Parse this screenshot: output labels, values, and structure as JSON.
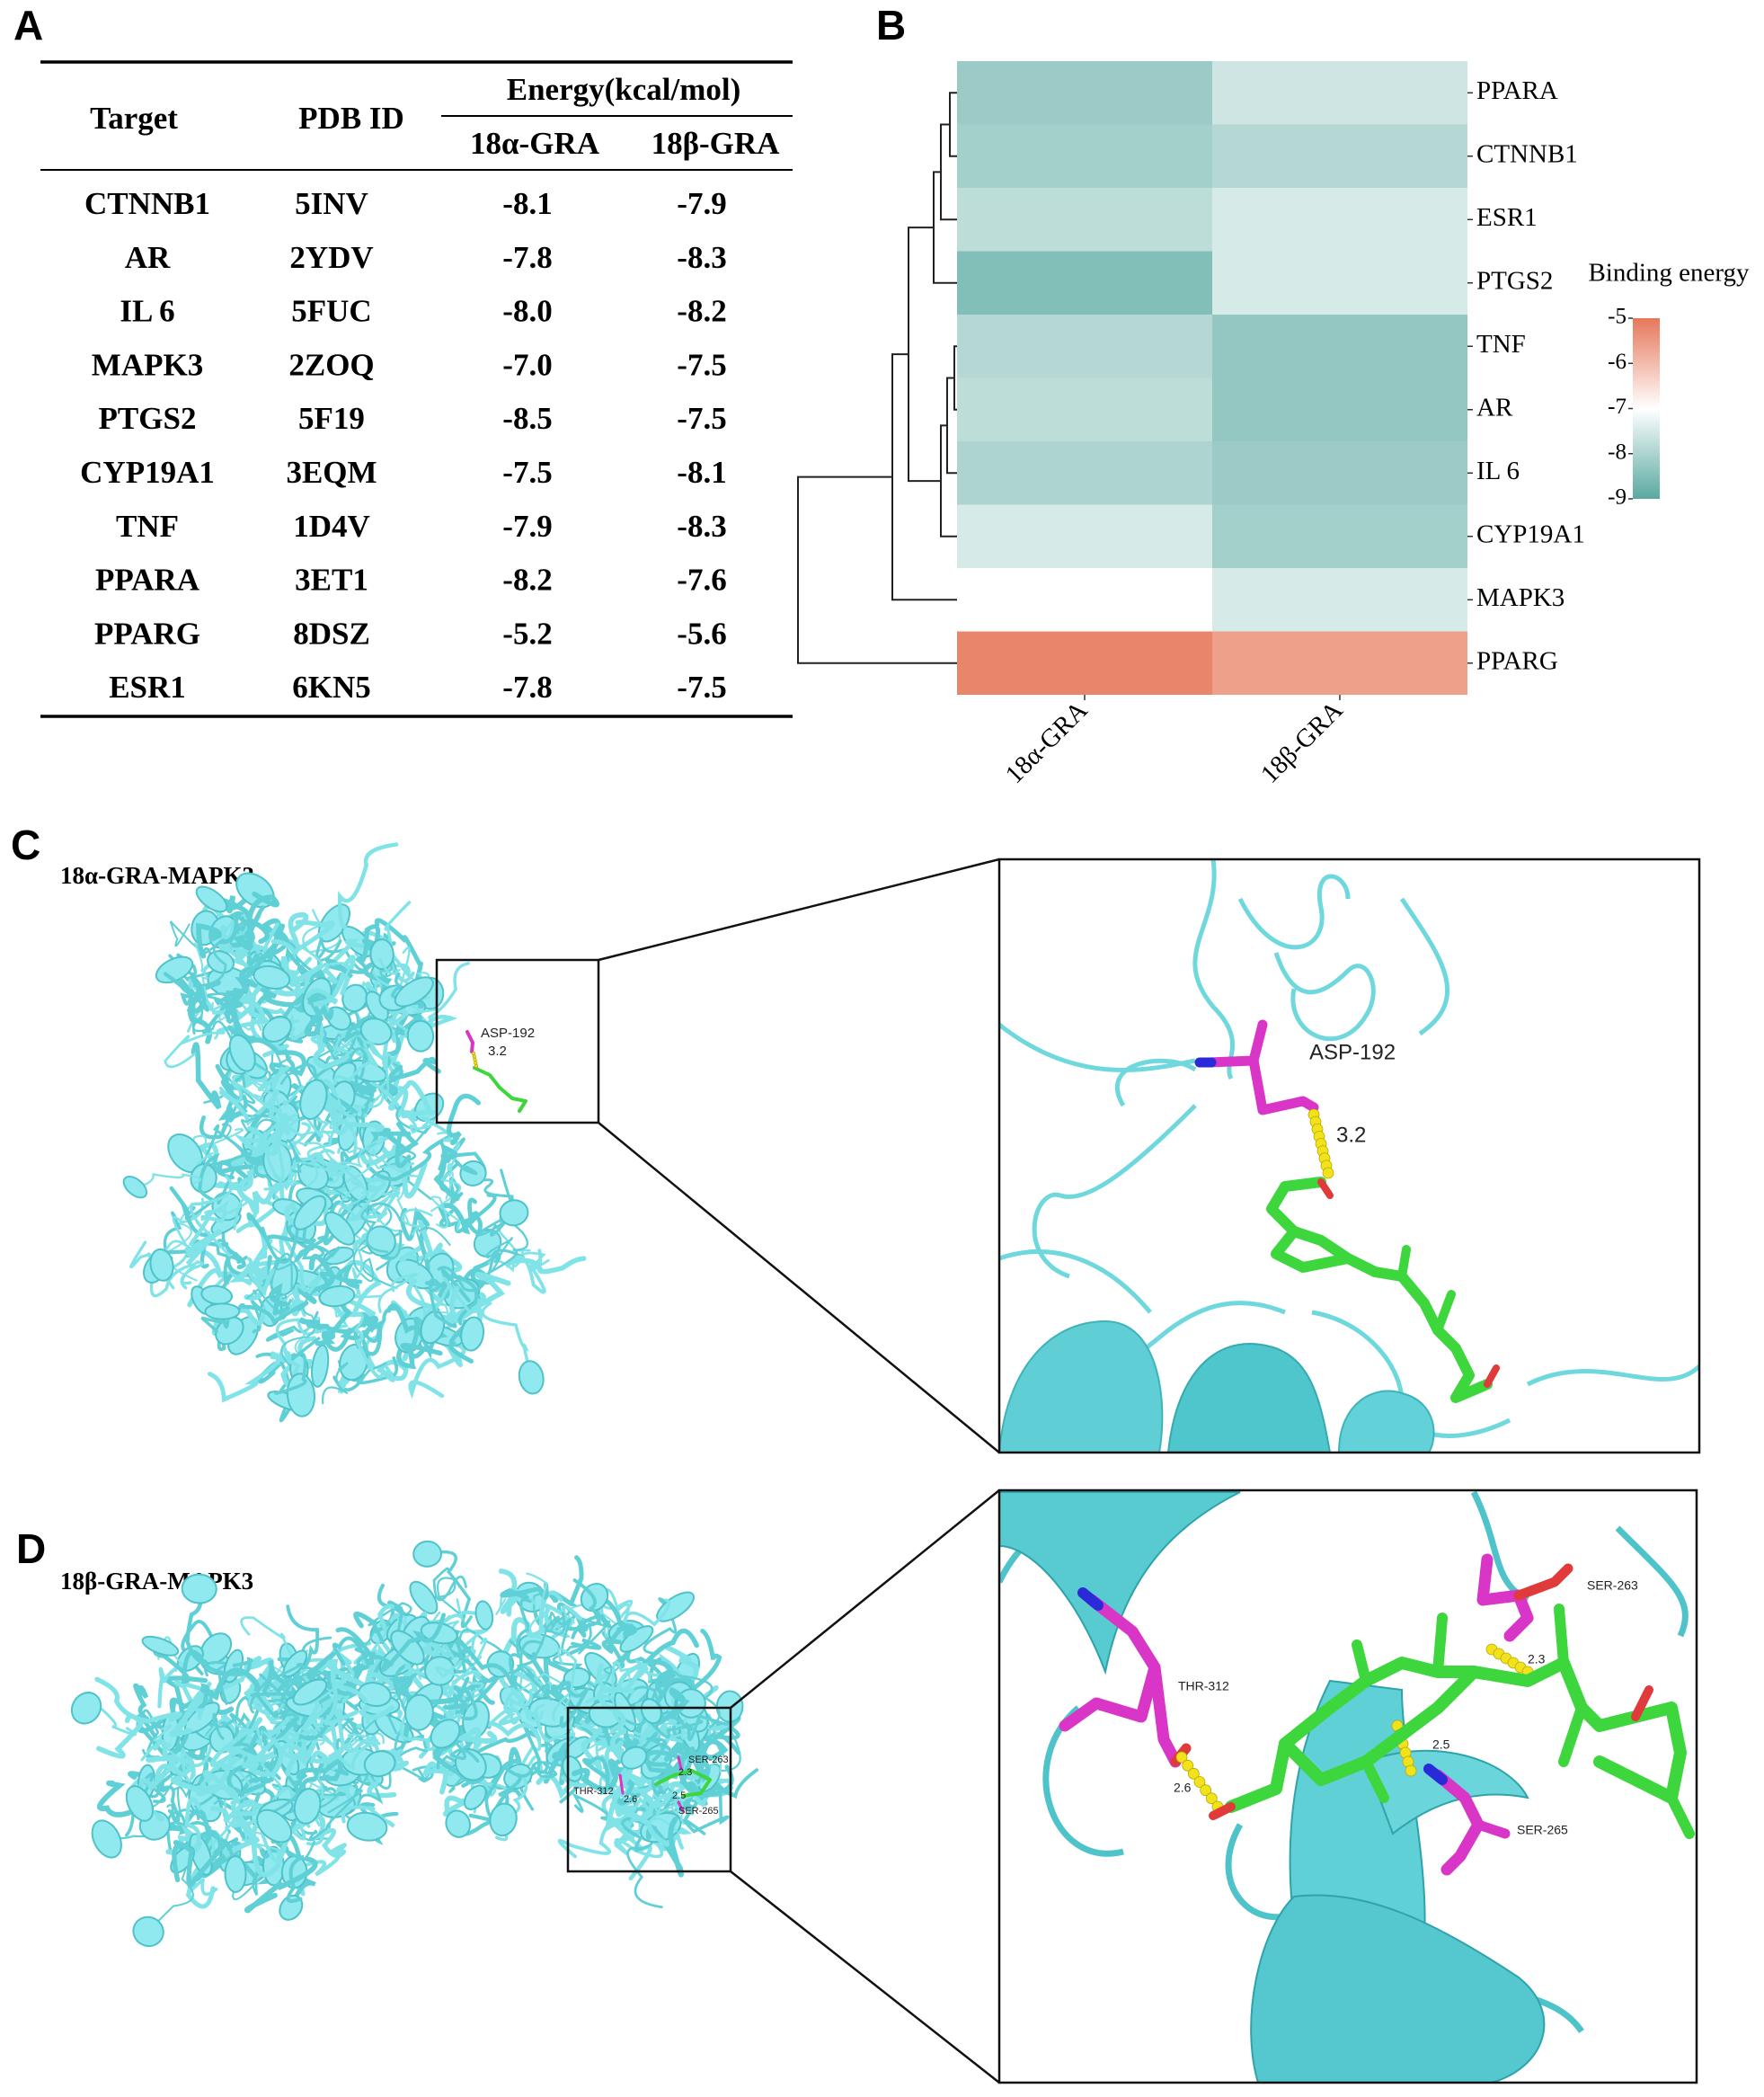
{
  "panel_labels": [
    "A",
    "B",
    "C",
    "D"
  ],
  "table": {
    "header": {
      "target": "Target",
      "pdb": "PDB ID",
      "energy": "Energy(kcal/mol)",
      "alpha": "18α-GRA",
      "beta": "18β-GRA"
    },
    "rows": [
      [
        "CTNNB1",
        "5INV",
        "-8.1",
        "-7.9"
      ],
      [
        "AR",
        "2YDV",
        "-7.8",
        "-8.3"
      ],
      [
        "IL 6",
        "5FUC",
        "-8.0",
        "-8.2"
      ],
      [
        "MAPK3",
        "2ZOQ",
        "-7.0",
        "-7.5"
      ],
      [
        "PTGS2",
        "5F19",
        "-8.5",
        "-7.5"
      ],
      [
        "CYP19A1",
        "3EQM",
        "-7.5",
        "-8.1"
      ],
      [
        "TNF",
        "1D4V",
        "-7.9",
        "-8.3"
      ],
      [
        "PPARA",
        "3ET1",
        "-8.2",
        "-7.6"
      ],
      [
        "PPARG",
        "8DSZ",
        "-5.2",
        "-5.6"
      ],
      [
        "ESR1",
        "6KN5",
        "-7.8",
        "-7.5"
      ]
    ]
  },
  "chart_data": {
    "type": "heatmap",
    "categories": [
      "PPARA",
      "CTNNB1",
      "ESR1",
      "PTGS2",
      "TNF",
      "AR",
      "IL 6",
      "CYP19A1",
      "MAPK3",
      "PPARG"
    ],
    "series": [
      {
        "name": "18α-GRA",
        "values": [
          -8.2,
          -8.1,
          -7.8,
          -8.5,
          -7.9,
          -7.8,
          -8.0,
          -7.5,
          -7.0,
          -5.2
        ]
      },
      {
        "name": "18β-GRA",
        "values": [
          -7.6,
          -7.9,
          -7.5,
          -7.5,
          -8.3,
          -8.3,
          -8.2,
          -8.1,
          -7.5,
          -5.6
        ]
      }
    ],
    "legend_title": "Binding energy",
    "clim": [
      -9,
      -5
    ],
    "colors": [
      "#5aa9a1",
      "#ffffff",
      "#e6775a"
    ],
    "colorbar_ticks": [
      -5,
      -6,
      -7,
      -8,
      -9
    ]
  },
  "docking": [
    {
      "title": "18α-GRA-MAPK3",
      "overview_labels": [
        "ASP-192",
        "3.2"
      ],
      "zoom_labels": [
        "ASP-192",
        "3.2"
      ]
    },
    {
      "title": "18β-GRA-MAPK3",
      "overview_labels": [
        "THR-312",
        "2.6",
        "SER-263",
        "2.3",
        "2.5",
        "SER-265"
      ],
      "zoom_labels": [
        "SER-263",
        "2.3",
        "THR-312",
        "2.5",
        "2.6",
        "SER-265"
      ]
    }
  ]
}
